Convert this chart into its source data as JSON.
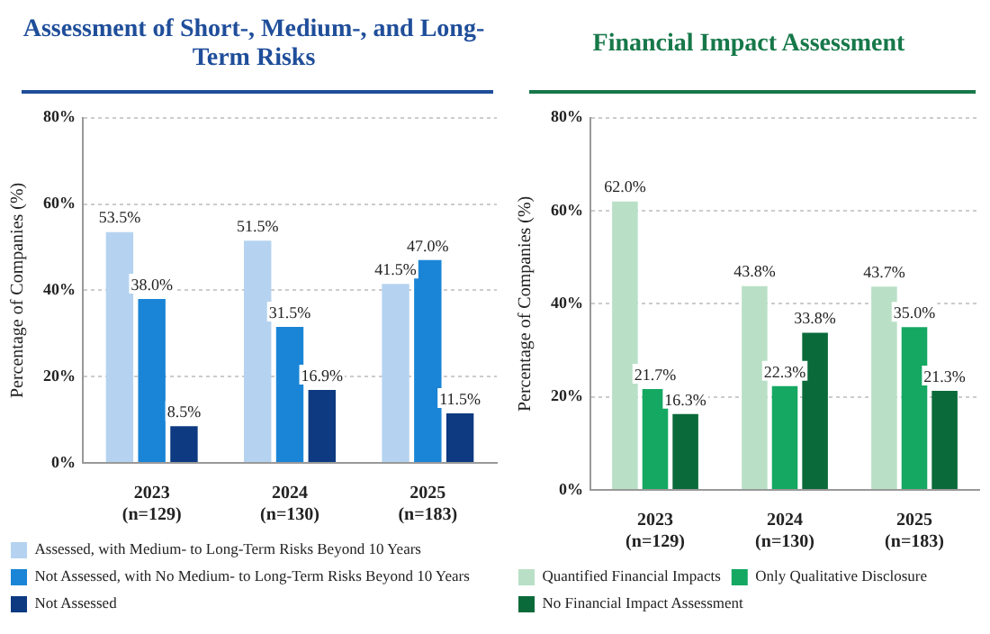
{
  "chart_data": [
    {
      "type": "bar",
      "title": "Assessment of Short-, Medium-, and Long-Term Risks",
      "ylabel": "Percentage of Companies (%)",
      "categories": [
        "2023\n(n=129)",
        "2024\n(n=130)",
        "2025\n(n=183)"
      ],
      "series": [
        {
          "name": "Assessed, with Medium- to Long-Term Risks Beyond 10 Years",
          "color": "#b5d3f0",
          "values": [
            53.5,
            51.5,
            41.5
          ],
          "value_labels": [
            "53.5%",
            "51.5%",
            "41.5%"
          ]
        },
        {
          "name": "Not Assessed, with No Medium- to Long-Term Risks Beyond 10 Years",
          "color": "#1a85d6",
          "values": [
            38.0,
            31.5,
            47.0
          ],
          "value_labels": [
            "38.0%",
            "31.5%",
            "47.0%"
          ]
        },
        {
          "name": "Not Assessed",
          "color": "#0d3a80",
          "values": [
            8.5,
            16.9,
            11.5
          ],
          "value_labels": [
            "8.5%",
            "16.9%",
            "11.5%"
          ]
        }
      ],
      "ylim": [
        0,
        80
      ],
      "yticks": [
        {
          "value": 0,
          "label": "0%"
        },
        {
          "value": 20,
          "label": "20%"
        },
        {
          "value": 40,
          "label": "40%"
        },
        {
          "value": 60,
          "label": "60%"
        },
        {
          "value": 80,
          "label": "80%"
        }
      ],
      "grid": "y",
      "legend": "bottom"
    },
    {
      "type": "bar",
      "title": "Financial Impact Assessment",
      "ylabel": "Percentage of Companies (%)",
      "categories": [
        "2023\n(n=129)",
        "2024\n(n=130)",
        "2025\n(n=183)"
      ],
      "series": [
        {
          "name": "Quantified Financial Impacts",
          "color": "#b9e0c6",
          "values": [
            62.0,
            43.8,
            43.7
          ],
          "value_labels": [
            "62.0%",
            "43.8%",
            "43.7%"
          ]
        },
        {
          "name": "Only Qualitative Disclosure",
          "color": "#15a862",
          "values": [
            21.7,
            22.3,
            35.0
          ],
          "value_labels": [
            "21.7%",
            "22.3%",
            "35.0%"
          ]
        },
        {
          "name": "No Financial Impact Assessment",
          "color": "#0b6a3a",
          "values": [
            16.3,
            33.8,
            21.3
          ],
          "value_labels": [
            "16.3%",
            "33.8%",
            "21.3%"
          ]
        }
      ],
      "ylim": [
        0,
        80
      ],
      "yticks": [
        {
          "value": 0,
          "label": "0%"
        },
        {
          "value": 20,
          "label": "20%"
        },
        {
          "value": 40,
          "label": "40%"
        },
        {
          "value": 60,
          "label": "60%"
        },
        {
          "value": 80,
          "label": "80%"
        }
      ],
      "grid": "y",
      "legend": "bottom"
    }
  ]
}
